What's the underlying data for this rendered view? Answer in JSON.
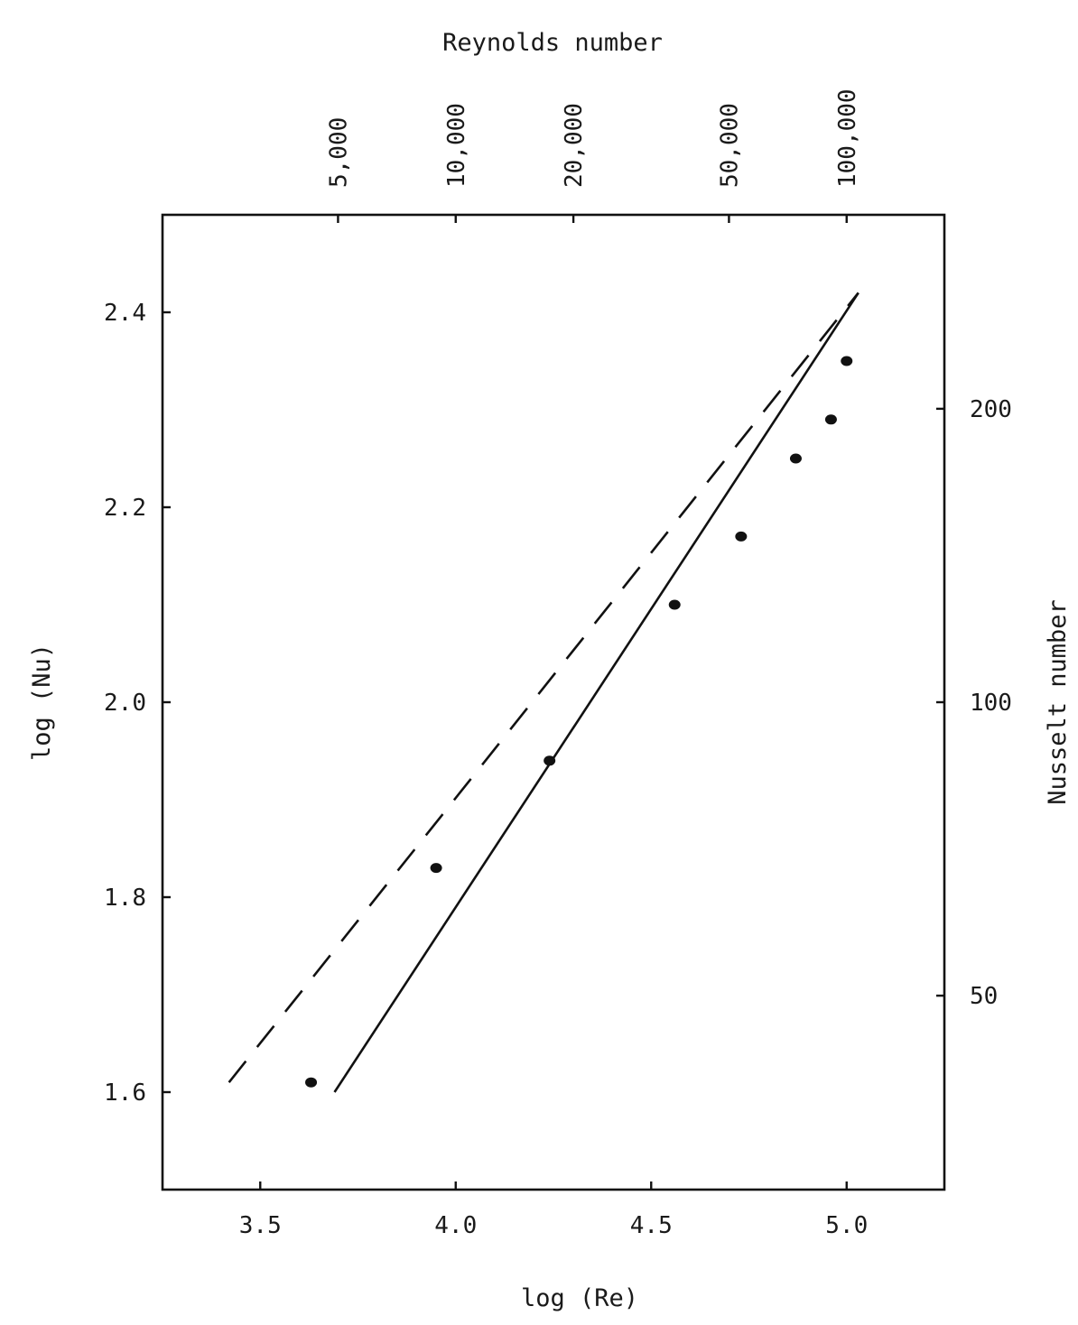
{
  "chart_data": {
    "type": "scatter",
    "title": "",
    "xlabel": "log (Re)",
    "ylabel": "log (Nu)",
    "top_axis_label": "Reynolds number",
    "right_axis_label": "Nusselt number",
    "xlim": [
      3.25,
      5.25
    ],
    "ylim": [
      1.5,
      2.5
    ],
    "grid": false,
    "x_ticks": [
      3.5,
      4.0,
      4.5,
      5.0
    ],
    "x_tick_labels": [
      "3.5",
      "4.0",
      "4.5",
      "5.0"
    ],
    "y_ticks": [
      1.6,
      1.8,
      2.0,
      2.2,
      2.4
    ],
    "y_tick_labels": [
      "1.6",
      "1.8",
      "2.0",
      "2.2",
      "2.4"
    ],
    "top_ticks": [
      5000,
      10000,
      20000,
      50000,
      100000
    ],
    "top_tick_labels": [
      "5,000",
      "10,000",
      "20,000",
      "50,000",
      "100,000"
    ],
    "right_ticks": [
      50,
      100,
      200
    ],
    "right_tick_labels": [
      "50",
      "100",
      "200"
    ],
    "series": [
      {
        "type": "scatter",
        "x": [
          3.63,
          3.95,
          4.24,
          4.56,
          4.73,
          4.87,
          4.96,
          5.0
        ],
        "y": [
          1.61,
          1.83,
          1.94,
          2.1,
          2.17,
          2.25,
          2.29,
          2.35
        ]
      },
      {
        "type": "line",
        "style": "solid",
        "x": [
          3.69,
          5.03
        ],
        "y": [
          1.6,
          2.42
        ]
      },
      {
        "type": "line",
        "style": "dashed",
        "x": [
          3.42,
          5.03
        ],
        "y": [
          1.61,
          2.42
        ]
      }
    ]
  }
}
